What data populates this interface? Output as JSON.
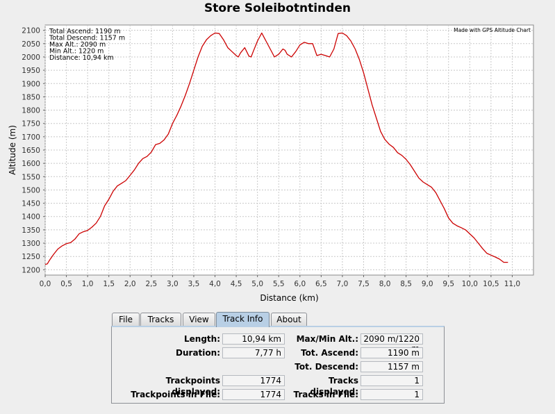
{
  "chart_data": {
    "type": "line",
    "title": "Store Soleibotntinden",
    "xlabel": "Distance (km)",
    "ylabel": "Altitude (m)",
    "xlim": [
      0,
      11.5
    ],
    "ylim": [
      1180,
      2120
    ],
    "xticks": [
      "0,0",
      "0,5",
      "1,0",
      "1,5",
      "2,0",
      "2,5",
      "3,0",
      "3,5",
      "4,0",
      "4,5",
      "5,0",
      "5,5",
      "6,0",
      "6,5",
      "7,0",
      "7,5",
      "8,0",
      "8,5",
      "9,0",
      "9,5",
      "10,0",
      "10,5",
      "11,0"
    ],
    "yticks": [
      "1200",
      "1250",
      "1300",
      "1350",
      "1400",
      "1450",
      "1500",
      "1550",
      "1600",
      "1650",
      "1700",
      "1750",
      "1800",
      "1850",
      "1900",
      "1950",
      "2000",
      "2050",
      "2100"
    ],
    "grid": true,
    "stats_lines": [
      "Total Ascend: 1190 m",
      "Total Descend: 1157 m",
      "Max Alt.: 2090 m",
      "Min Alt.: 1220 m",
      "Distance: 10,94 km"
    ],
    "credit": "Made with GPS Altitude Chart",
    "line_color": "#cc0000",
    "series": [
      {
        "x": [
          0.0,
          0.05,
          0.1,
          0.2,
          0.3,
          0.4,
          0.5,
          0.6,
          0.7,
          0.8,
          0.9,
          1.0,
          1.1,
          1.2,
          1.3,
          1.4,
          1.5,
          1.6,
          1.7,
          1.8,
          1.9,
          2.0,
          2.1,
          2.2,
          2.3,
          2.4,
          2.5,
          2.6,
          2.7,
          2.8,
          2.9,
          3.0,
          3.1,
          3.2,
          3.3,
          3.4,
          3.5,
          3.6,
          3.7,
          3.8,
          3.9,
          4.0,
          4.1,
          4.2,
          4.3,
          4.4,
          4.5,
          4.55,
          4.6,
          4.7,
          4.8,
          4.85,
          4.9,
          5.0,
          5.1,
          5.2,
          5.3,
          5.4,
          5.5,
          5.6,
          5.65,
          5.7,
          5.8,
          5.9,
          6.0,
          6.1,
          6.2,
          6.3,
          6.4,
          6.5,
          6.6,
          6.7,
          6.8,
          6.9,
          7.0,
          7.1,
          7.2,
          7.3,
          7.4,
          7.5,
          7.6,
          7.7,
          7.8,
          7.9,
          8.0,
          8.1,
          8.2,
          8.3,
          8.4,
          8.5,
          8.6,
          8.7,
          8.8,
          8.9,
          9.0,
          9.1,
          9.2,
          9.3,
          9.4,
          9.5,
          9.6,
          9.7,
          9.8,
          9.9,
          10.0,
          10.1,
          10.2,
          10.3,
          10.4,
          10.5,
          10.6,
          10.7,
          10.8,
          10.9
        ],
        "y": [
          1220,
          1222,
          1235,
          1258,
          1278,
          1290,
          1298,
          1302,
          1315,
          1335,
          1343,
          1348,
          1360,
          1375,
          1400,
          1440,
          1465,
          1495,
          1515,
          1525,
          1535,
          1555,
          1575,
          1600,
          1618,
          1626,
          1642,
          1670,
          1675,
          1688,
          1710,
          1750,
          1780,
          1815,
          1855,
          1900,
          1950,
          2000,
          2040,
          2065,
          2080,
          2090,
          2088,
          2065,
          2035,
          2020,
          2005,
          2000,
          2015,
          2035,
          2003,
          2000,
          2020,
          2060,
          2090,
          2060,
          2030,
          2000,
          2010,
          2030,
          2025,
          2010,
          2000,
          2020,
          2045,
          2055,
          2050,
          2050,
          2005,
          2010,
          2005,
          2000,
          2030,
          2088,
          2090,
          2080,
          2060,
          2030,
          1990,
          1940,
          1880,
          1820,
          1770,
          1720,
          1690,
          1672,
          1660,
          1640,
          1630,
          1615,
          1595,
          1570,
          1545,
          1530,
          1520,
          1510,
          1490,
          1460,
          1430,
          1395,
          1375,
          1365,
          1358,
          1350,
          1335,
          1320,
          1300,
          1280,
          1262,
          1255,
          1248,
          1240,
          1228,
          1228
        ]
      }
    ]
  },
  "tabs": [
    {
      "label": "File"
    },
    {
      "label": "Tracks"
    },
    {
      "label": "View"
    },
    {
      "label": "Track Info"
    },
    {
      "label": "About"
    }
  ],
  "track_info": {
    "length_label": "Length:",
    "length_value": "10,94 km",
    "duration_label": "Duration:",
    "duration_value": "7,77 h",
    "trackpoints_displayed_label": "Trackpoints displayed:",
    "trackpoints_displayed_value": "1774",
    "trackpoints_file_label": "Trackpoints in File:",
    "trackpoints_file_value": "1774",
    "maxmin_label": "Max/Min Alt.:",
    "maxmin_value": "2090 m/1220 m",
    "ascend_label": "Tot. Ascend:",
    "ascend_value": "1190 m",
    "descend_label": "Tot. Descend:",
    "descend_value": "1157 m",
    "tracks_displayed_label": "Tracks displayed:",
    "tracks_displayed_value": "1",
    "tracks_file_label": "Tracks in File:",
    "tracks_file_value": "1"
  }
}
